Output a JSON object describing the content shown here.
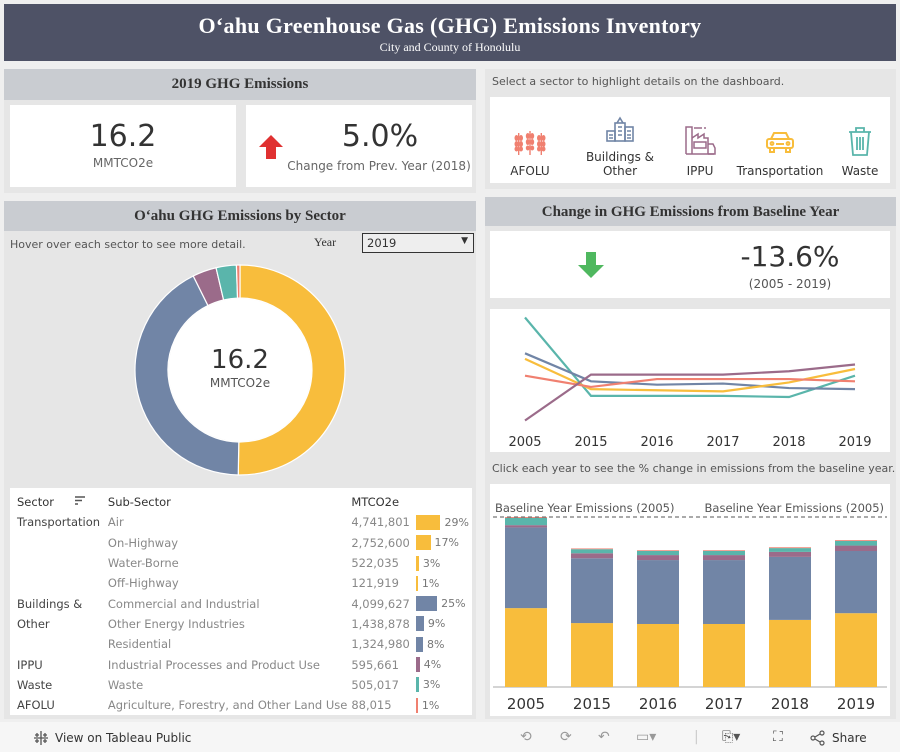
{
  "header": {
    "title": "Oʻahu Greenhouse Gas (GHG) Emissions Inventory",
    "subtitle": "City and County of Honolulu"
  },
  "colors": {
    "header_bg": "#4e5266",
    "Transportation": "#f8bd3c",
    "Buildings & Other": "#7185a6",
    "IPPU": "#9b6b8a",
    "Waste": "#5ab5ab",
    "AFOLU": "#f08070",
    "up_arrow": "#e03131",
    "down_arrow": "#4fb85f"
  },
  "emissions_2019": {
    "title": "2019  GHG  Emissions",
    "total_value": "16.2",
    "total_unit": "MMTCO2e",
    "change_value": "5.0%",
    "change_label": "Change from Prev. Year (2018)",
    "change_icon": "arrow-up-icon"
  },
  "sector_selector": {
    "instruction": "Select a sector to highlight details on the dashboard.",
    "items": [
      {
        "label": "AFOLU",
        "icon": "wheat-icon"
      },
      {
        "label": "Buildings & Other",
        "icon": "buildings-icon"
      },
      {
        "label": "IPPU",
        "icon": "factory-icon"
      },
      {
        "label": "Transportation",
        "icon": "car-icon"
      },
      {
        "label": "Waste",
        "icon": "trash-icon"
      }
    ]
  },
  "by_sector": {
    "title": "Oʻahu  GHG  Emissions  by  Sector",
    "hint": "Hover over each sector to see more detail.",
    "year_label": "Year",
    "year_selected": "2019",
    "donut_center_value": "16.2",
    "donut_center_unit": "MMTCO2e",
    "table": {
      "headers": {
        "sector": "Sector",
        "sub_sector": "Sub-Sector",
        "value": "MTCO2e"
      },
      "rows": [
        {
          "sector": "Transportation",
          "sub": "Air",
          "value": "4,741,801",
          "pct": "29%",
          "pct_num": 29,
          "color_key": "Transportation"
        },
        {
          "sector": "",
          "sub": "On-Highway",
          "value": "2,752,600",
          "pct": "17%",
          "pct_num": 17,
          "color_key": "Transportation"
        },
        {
          "sector": "",
          "sub": "Water-Borne",
          "value": "522,035",
          "pct": "3%",
          "pct_num": 3,
          "color_key": "Transportation"
        },
        {
          "sector": "",
          "sub": "Off-Highway",
          "value": "121,919",
          "pct": "1%",
          "pct_num": 1,
          "color_key": "Transportation"
        },
        {
          "sector": "Buildings &",
          "sub": "Commercial and Industrial",
          "value": "4,099,627",
          "pct": "25%",
          "pct_num": 25,
          "color_key": "Buildings & Other"
        },
        {
          "sector": "Other",
          "sub": "Other Energy Industries",
          "value": "1,438,878",
          "pct": "9%",
          "pct_num": 9,
          "color_key": "Buildings & Other"
        },
        {
          "sector": "",
          "sub": "Residential",
          "value": "1,324,980",
          "pct": "8%",
          "pct_num": 8,
          "color_key": "Buildings & Other"
        },
        {
          "sector": "IPPU",
          "sub": "Industrial Processes and Product Use",
          "value": "595,661",
          "pct": "4%",
          "pct_num": 4,
          "color_key": "IPPU"
        },
        {
          "sector": "Waste",
          "sub": "Waste",
          "value": "505,017",
          "pct": "3%",
          "pct_num": 3,
          "color_key": "Waste"
        },
        {
          "sector": "AFOLU",
          "sub": "Agriculture, Forestry, and Other Land Use",
          "value": "88,015",
          "pct": "1%",
          "pct_num": 1,
          "color_key": "AFOLU"
        }
      ]
    }
  },
  "baseline_change": {
    "title": "Change  in  GHG  Emissions  from  Baseline  Year",
    "value": "-13.6%",
    "period": "(2005 - 2019)",
    "icon": "arrow-down-icon",
    "click_hint": "Click each year to see the % change in emissions from the baseline year.",
    "baseline_label_left": "Baseline Year Emissions (2005)",
    "baseline_label_right": "Baseline Year Emissions (2005)"
  },
  "chart_data": [
    {
      "type": "pie",
      "title": "Oʻahu GHG Emissions by Sector (2019)",
      "unit": "MTCO2e",
      "categories": [
        "Transportation",
        "Buildings & Other",
        "IPPU",
        "Waste",
        "AFOLU"
      ],
      "values": [
        8138355,
        6863485,
        595661,
        505017,
        88015
      ],
      "center_label": "16.2 MMTCO2e"
    },
    {
      "type": "line",
      "title": "Sector emission trend (relative index, unlabeled axis)",
      "x": [
        "2005",
        "2015",
        "2016",
        "2017",
        "2018",
        "2019"
      ],
      "ylim": [
        0,
        100
      ],
      "grid": false,
      "series": [
        {
          "name": "Waste",
          "values": [
            96,
            26,
            26,
            26,
            25,
            44
          ]
        },
        {
          "name": "Buildings & Other",
          "values": [
            64,
            39,
            36,
            37,
            33,
            32
          ]
        },
        {
          "name": "Transportation",
          "values": [
            59,
            32,
            31,
            30,
            38,
            50
          ]
        },
        {
          "name": "AFOLU",
          "values": [
            44,
            34,
            41,
            41,
            41,
            39
          ]
        },
        {
          "name": "IPPU",
          "values": [
            4,
            45,
            45,
            45,
            48,
            54
          ]
        }
      ]
    },
    {
      "type": "bar",
      "stacked": true,
      "title": "Total emissions by year vs baseline (MMTCO2e)",
      "categories": [
        "2005",
        "2015",
        "2016",
        "2017",
        "2018",
        "2019"
      ],
      "ylim": [
        0,
        18.75
      ],
      "baseline_value": 18.75,
      "series": [
        {
          "name": "Transportation",
          "values": [
            8.7,
            7.05,
            6.95,
            6.95,
            7.4,
            8.14
          ]
        },
        {
          "name": "Buildings & Other",
          "values": [
            8.9,
            7.15,
            7.05,
            7.05,
            6.95,
            6.86
          ]
        },
        {
          "name": "IPPU",
          "values": [
            0.25,
            0.55,
            0.55,
            0.55,
            0.55,
            0.6
          ]
        },
        {
          "name": "Waste",
          "values": [
            0.8,
            0.45,
            0.45,
            0.45,
            0.42,
            0.51
          ]
        },
        {
          "name": "AFOLU",
          "values": [
            0.1,
            0.08,
            0.08,
            0.08,
            0.09,
            0.09
          ]
        }
      ]
    }
  ],
  "footer": {
    "view_on": "View on Tableau Public",
    "share": "Share"
  }
}
